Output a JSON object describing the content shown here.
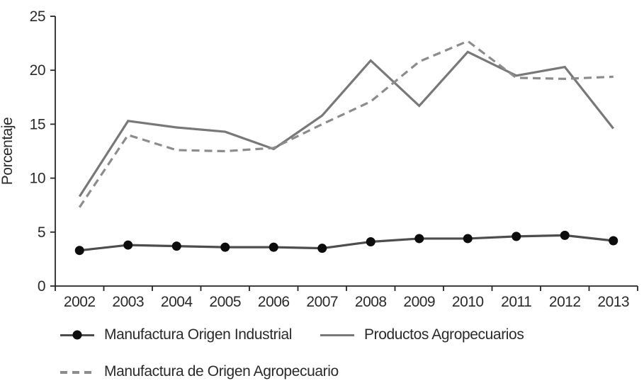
{
  "chart_data": {
    "type": "line",
    "title": "",
    "xlabel": "",
    "ylabel": "Porcentaje",
    "ylim": [
      0,
      25
    ],
    "yticks": [
      0,
      5,
      10,
      15,
      20,
      25
    ],
    "grid": false,
    "legend_position": "bottom",
    "categories": [
      "2002",
      "2003",
      "2004",
      "2005",
      "2006",
      "2007",
      "2008",
      "2009",
      "2010",
      "2011",
      "2012",
      "2013"
    ],
    "series": [
      {
        "name": "Manufactura Origen Industrial",
        "values": [
          3.3,
          3.8,
          3.7,
          3.6,
          3.6,
          3.5,
          4.1,
          4.4,
          4.4,
          4.6,
          4.7,
          4.2
        ],
        "style": "solid",
        "markers": "circle",
        "color": "#4d4d4d",
        "marker_color": "#0d0d0d"
      },
      {
        "name": "Productos Agropecuarios",
        "values": [
          8.3,
          15.3,
          14.7,
          14.3,
          12.7,
          15.8,
          20.9,
          16.7,
          21.7,
          19.5,
          20.3,
          14.6
        ],
        "style": "solid",
        "markers": "none",
        "color": "#787878"
      },
      {
        "name": "Manufactura de Origen Agropecuario",
        "values": [
          7.3,
          14.0,
          12.6,
          12.5,
          12.8,
          15.0,
          17.1,
          20.8,
          22.7,
          19.3,
          19.2,
          19.4
        ],
        "style": "dashed",
        "markers": "none",
        "color": "#8c8c8c"
      }
    ],
    "axis_color": "#262626"
  }
}
